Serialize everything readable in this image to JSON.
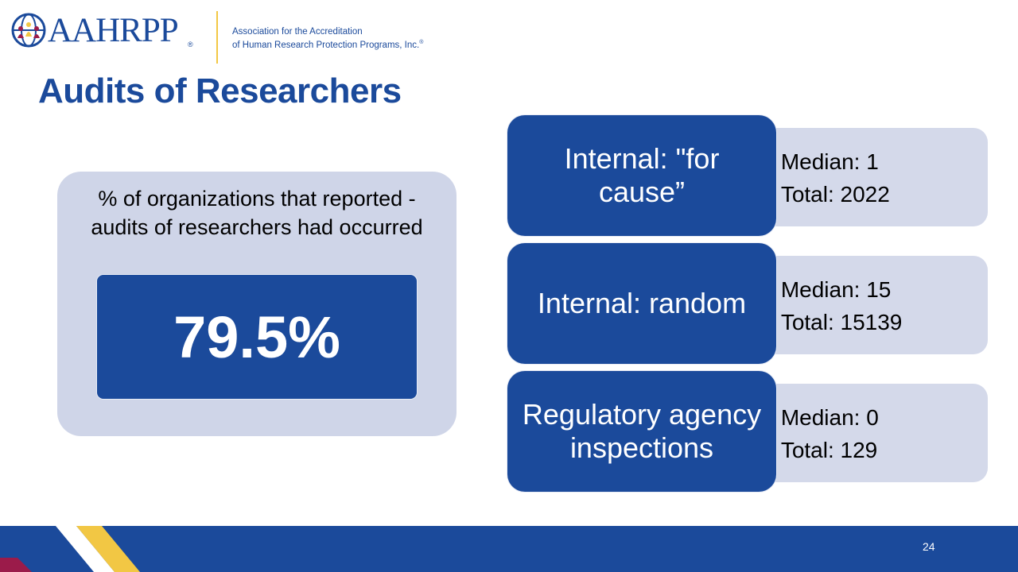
{
  "header": {
    "logo_text": "AAHRPP",
    "logo_registered": "®",
    "tagline_line1": "Association for the Accreditation",
    "tagline_line2": "of Human Research Protection Programs, Inc.",
    "tagline_registered": "®"
  },
  "title": "Audits of Researchers",
  "stat": {
    "caption_line1": "% of organizations that reported -",
    "caption_line2": "audits of researchers had occurred",
    "value": "79.5%"
  },
  "audits": [
    {
      "label_line1": "Internal: \"for",
      "label_line2": "cause”",
      "median": "Median: 1",
      "total": "Total: 2022"
    },
    {
      "label_line1": "Internal: random",
      "label_line2": "",
      "median": "Median: 15",
      "total": "Total: 15139"
    },
    {
      "label_line1": "Regulatory agency",
      "label_line2": "inspections",
      "median": "Median: 0",
      "total": "Total: 129"
    }
  ],
  "footer": {
    "page_number": "24"
  },
  "colors": {
    "brand_blue": "#1b4a9b",
    "panel_light": "#cfd5e8",
    "accent_yellow": "#f2c744",
    "accent_maroon": "#9b1b4a"
  }
}
